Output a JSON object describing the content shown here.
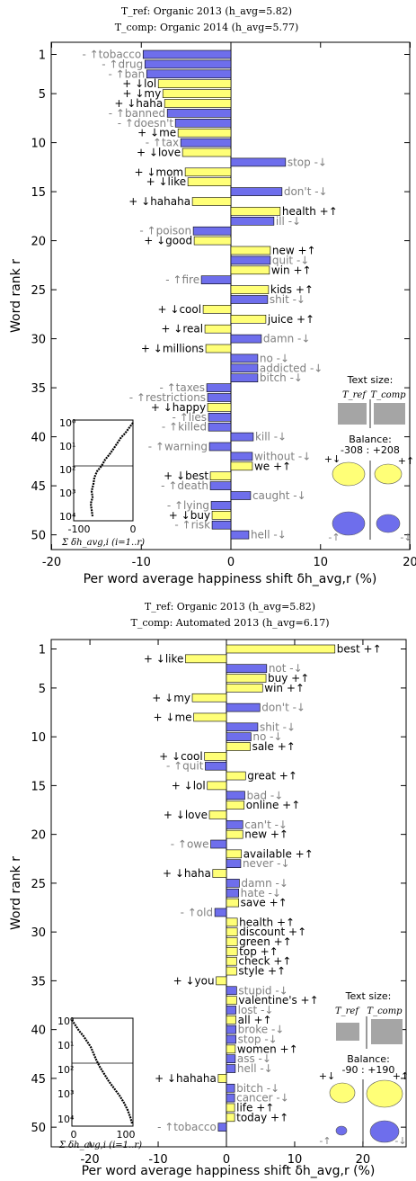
{
  "colors": {
    "positive_bar": "#ffff77",
    "negative_bar": "#6e6eec",
    "ref_word": "#000000",
    "comp_word": "#808080",
    "size_box": "#a5a5a5"
  },
  "chart_data": [
    {
      "type": "bar",
      "orientation": "horizontal",
      "title_ref": "T_ref: Organic 2013 (h_avg=5.82)",
      "title_comp": "T_comp: Organic 2014 (h_avg=5.77)",
      "xlabel": "Per word average happiness shift δh_avg,r (%)",
      "ylabel": "Word rank r",
      "xlim": [
        -20,
        20
      ],
      "xticks": [
        -20,
        -10,
        0,
        10,
        20
      ],
      "yticks": [
        1,
        5,
        10,
        15,
        20,
        25,
        30,
        35,
        40,
        45,
        50
      ],
      "ranks": [
        1,
        2,
        3,
        4,
        5,
        6,
        7,
        8,
        9,
        10,
        11,
        12,
        13,
        14,
        15,
        16,
        17,
        18,
        19,
        20,
        21,
        22,
        23,
        24,
        25,
        26,
        27,
        28,
        29,
        30,
        31,
        32,
        33,
        34,
        35,
        36,
        37,
        38,
        39,
        40,
        41,
        42,
        43,
        44,
        45,
        46,
        47,
        48,
        49,
        50
      ],
      "words": [
        "tobacco",
        "drug",
        "ban",
        "lol",
        "my",
        "haha",
        "banned",
        "doesn't",
        "me",
        "tax",
        "love",
        "stop",
        "mom",
        "like",
        "don't",
        "hahaha",
        "health",
        "ill",
        "poison",
        "good",
        "new",
        "quit",
        "win",
        "fire",
        "kids",
        "shit",
        "cool",
        "juice",
        "real",
        "damn",
        "millions",
        "no",
        "addicted",
        "bitch",
        "taxes",
        "restrictions",
        "happy",
        "lies",
        "killed",
        "kill",
        "warning",
        "without",
        "we",
        "best",
        "death",
        "caught",
        "lying",
        "buy",
        "risk",
        "hell"
      ],
      "arrows": [
        "↑",
        "↑",
        "↑",
        "↓",
        "↓",
        "↓",
        "↑",
        "↑",
        "↓",
        "↑",
        "↓",
        "↓",
        "↓",
        "↓",
        "↓",
        "↓",
        "↑",
        "↓",
        "↑",
        "↓",
        "↑",
        "↓",
        "↑",
        "↑",
        "↑",
        "↓",
        "↓",
        "↑",
        "↓",
        "↓",
        "↓",
        "↓",
        "↓",
        "↓",
        "↑",
        "↑",
        "↓",
        "↑",
        "↑",
        "↓",
        "↑",
        "↓",
        "↑",
        "↓",
        "↑",
        "↓",
        "↑",
        "↓",
        "↑",
        "↓"
      ],
      "signs": [
        "-",
        "-",
        "-",
        "+",
        "+",
        "+",
        "-",
        "-",
        "+",
        "-",
        "+",
        "-",
        "+",
        "+",
        "-",
        "+",
        "+",
        "-",
        "-",
        "+",
        "+",
        "-",
        "+",
        "-",
        "+",
        "-",
        "+",
        "+",
        "+",
        "-",
        "+",
        "-",
        "-",
        "-",
        "-",
        "-",
        "+",
        "-",
        "-",
        "-",
        "-",
        "-",
        "+",
        "+",
        "-",
        "-",
        "-",
        "+",
        "-",
        "-"
      ],
      "values": [
        -9.8,
        -9.6,
        -9.4,
        -8.1,
        -7.6,
        -7.4,
        -7.1,
        -6.2,
        -5.9,
        -5.6,
        -5.4,
        6.1,
        -5.1,
        -4.8,
        5.7,
        -4.3,
        5.5,
        4.8,
        -4.2,
        -4.1,
        4.4,
        4.4,
        4.3,
        -3.3,
        4.2,
        4.1,
        -3.1,
        3.9,
        -2.9,
        3.4,
        -2.8,
        3.0,
        3.0,
        3.0,
        -2.7,
        -2.6,
        -2.6,
        -2.5,
        -2.5,
        2.5,
        -2.4,
        2.4,
        2.4,
        -2.3,
        -2.3,
        2.2,
        -2.2,
        -2.1,
        -2.1,
        2.0
      ],
      "inset": {
        "xlim": [
          -100,
          0
        ],
        "xticks": [
          -100,
          0
        ],
        "ytick_labels": [
          "10⁰",
          "10¹",
          "10²",
          "10³",
          "10⁴"
        ],
        "xlabel": "Σ δh_avg,i (i=1..r)"
      },
      "legend": {
        "text_size_label": "Text size:",
        "size_labels": [
          "T_ref",
          "T_comp"
        ],
        "size_ratio": [
          1.0,
          1.0
        ],
        "balance_label": "Balance:",
        "balance_value": "-308 : +208",
        "quadrant_signs": [
          "+↓",
          "+↑",
          "-↑",
          "-↓"
        ]
      }
    },
    {
      "type": "bar",
      "orientation": "horizontal",
      "title_ref": "T_ref: Organic 2013 (h_avg=5.82)",
      "title_comp": "T_comp: Automated 2013 (h_avg=6.17)",
      "xlabel": "Per word average happiness shift δh_avg,r (%)",
      "ylabel": "Word rank r",
      "xlim": [
        -26,
        26
      ],
      "xticks": [
        -20,
        -10,
        0,
        10,
        20
      ],
      "yticks": [
        1,
        5,
        10,
        15,
        20,
        25,
        30,
        35,
        40,
        45,
        50
      ],
      "ranks": [
        1,
        2,
        3,
        4,
        5,
        6,
        7,
        8,
        9,
        10,
        11,
        12,
        13,
        14,
        15,
        16,
        17,
        18,
        19,
        20,
        21,
        22,
        23,
        24,
        25,
        26,
        27,
        28,
        29,
        30,
        31,
        32,
        33,
        34,
        35,
        36,
        37,
        38,
        39,
        40,
        41,
        42,
        43,
        44,
        45,
        46,
        47,
        48,
        49,
        50
      ],
      "words": [
        "best",
        "like",
        "not",
        "buy",
        "win",
        "my",
        "don't",
        "me",
        "shit",
        "no",
        "sale",
        "cool",
        "quit",
        "great",
        "lol",
        "bad",
        "online",
        "love",
        "can't",
        "new",
        "owe",
        "available",
        "never",
        "haha",
        "damn",
        "hate",
        "save",
        "old",
        "health",
        "discount",
        "green",
        "top",
        "check",
        "style",
        "you",
        "stupid",
        "valentine's",
        "lost",
        "all",
        "broke",
        "stop",
        "women",
        "ass",
        "hell",
        "hahaha",
        "bitch",
        "cancer",
        "life",
        "today",
        "tobacco"
      ],
      "arrows": [
        "↑",
        "↓",
        "↓",
        "↑",
        "↑",
        "↓",
        "↓",
        "↓",
        "↓",
        "↓",
        "↑",
        "↓",
        "↑",
        "↑",
        "↓",
        "↓",
        "↑",
        "↓",
        "↓",
        "↑",
        "↑",
        "↑",
        "↓",
        "↓",
        "↓",
        "↓",
        "↑",
        "↑",
        "↑",
        "↑",
        "↑",
        "↑",
        "↑",
        "↑",
        "↓",
        "↓",
        "↑",
        "↓",
        "↑",
        "↓",
        "↓",
        "↑",
        "↓",
        "↓",
        "↓",
        "↓",
        "↓",
        "↑",
        "↑",
        "↑"
      ],
      "signs": [
        "+",
        "+",
        "-",
        "+",
        "+",
        "+",
        "-",
        "+",
        "-",
        "-",
        "+",
        "+",
        "-",
        "+",
        "+",
        "-",
        "+",
        "+",
        "-",
        "+",
        "-",
        "+",
        "-",
        "+",
        "-",
        "-",
        "+",
        "-",
        "+",
        "+",
        "+",
        "+",
        "+",
        "+",
        "+",
        "-",
        "+",
        "-",
        "+",
        "-",
        "-",
        "+",
        "-",
        "-",
        "+",
        "-",
        "-",
        "+",
        "+",
        "-"
      ],
      "values": [
        15.9,
        -6.0,
        5.9,
        5.8,
        5.3,
        -5.0,
        4.9,
        -4.8,
        4.6,
        3.6,
        3.5,
        -3.2,
        -3.1,
        2.8,
        -2.8,
        2.7,
        2.6,
        -2.5,
        2.4,
        2.4,
        -2.3,
        2.2,
        2.1,
        -2.0,
        1.9,
        1.8,
        1.8,
        -1.7,
        1.6,
        1.6,
        1.6,
        1.6,
        1.5,
        1.5,
        -1.5,
        1.5,
        1.5,
        1.4,
        1.4,
        1.4,
        1.4,
        1.3,
        1.3,
        1.3,
        -1.2,
        1.2,
        1.2,
        1.2,
        1.2,
        -1.2
      ],
      "inset": {
        "xlim": [
          0,
          100
        ],
        "xticks": [
          0,
          100
        ],
        "ytick_labels": [
          "10⁰",
          "10¹",
          "10²",
          "10³",
          "10⁴"
        ],
        "xlabel": "Σ δh_avg,i (i=1..r)"
      },
      "legend": {
        "text_size_label": "Text size:",
        "size_labels": [
          "T_ref",
          "T_comp"
        ],
        "size_ratio": [
          0.75,
          1.0
        ],
        "balance_label": "Balance:",
        "balance_value": "-90 : +190",
        "quadrant_signs": [
          "+↓",
          "+↑",
          "-↑",
          "-↓"
        ]
      }
    }
  ]
}
